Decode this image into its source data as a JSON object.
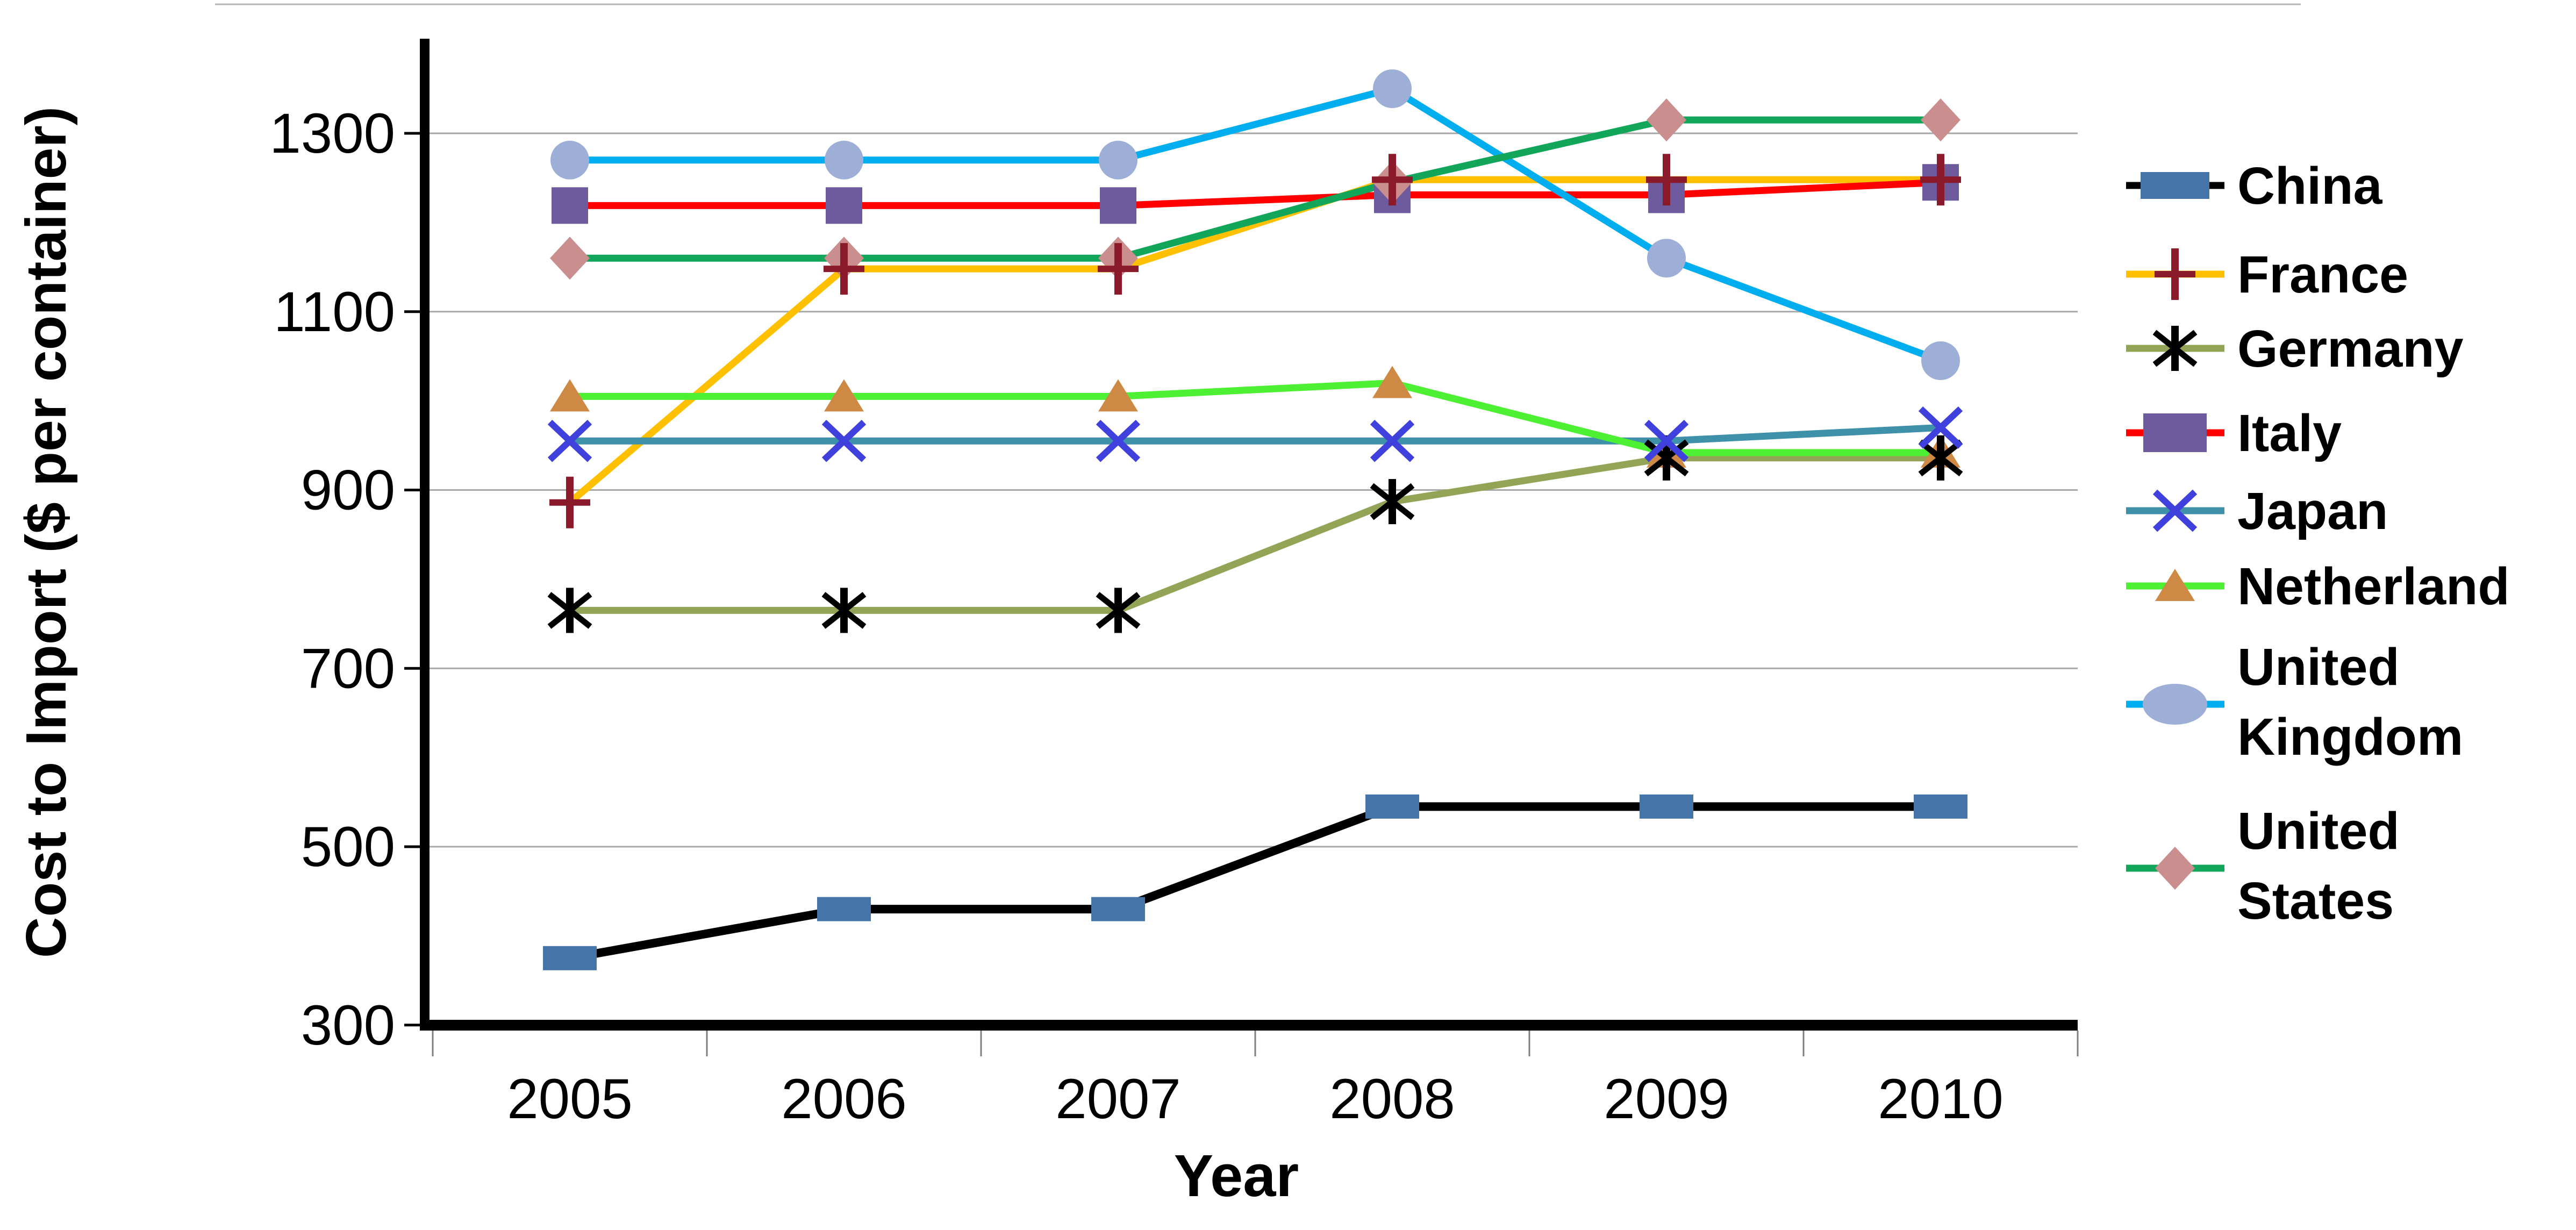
{
  "chart_data": {
    "type": "line",
    "xlabel": "Year",
    "ylabel": "Cost to Import ($ per container)",
    "categories": [
      "2005",
      "2006",
      "2007",
      "2008",
      "2009",
      "2010"
    ],
    "y_ticks": [
      300,
      500,
      700,
      900,
      1100,
      1300
    ],
    "ylim": [
      300,
      1400
    ],
    "grid": true,
    "legend_position": "right",
    "gridline_color": "#a8a8a8",
    "axis_color": "#000000",
    "series": [
      {
        "name": "China",
        "label_lines": [
          "China"
        ],
        "values": [
          375,
          430,
          430,
          545,
          545,
          545
        ],
        "line_color": "#000000",
        "line_width": 16,
        "marker": {
          "type": "rect",
          "fill": "#4574a9"
        }
      },
      {
        "name": "France",
        "label_lines": [
          "France"
        ],
        "values": [
          886,
          1148,
          1148,
          1248,
          1248,
          1248
        ],
        "line_color": "#ffc000",
        "line_width": 13,
        "marker": {
          "type": "plus",
          "fill": "#8b1a2a"
        }
      },
      {
        "name": "Germany",
        "label_lines": [
          "Germany"
        ],
        "values": [
          765,
          765,
          765,
          887,
          936,
          936
        ],
        "line_color": "#94a456",
        "line_width": 13,
        "marker": {
          "type": "asterisk",
          "fill": "#000000"
        }
      },
      {
        "name": "Italy",
        "label_lines": [
          "Italy"
        ],
        "values": [
          1219,
          1219,
          1219,
          1231,
          1231,
          1245
        ],
        "line_color": "#fe0000",
        "line_width": 13,
        "marker": {
          "type": "square",
          "fill": "#6e5b9e"
        }
      },
      {
        "name": "Japan",
        "label_lines": [
          "Japan"
        ],
        "values": [
          955,
          955,
          955,
          955,
          955,
          970
        ],
        "line_color": "#3f90a9",
        "line_width": 13,
        "marker": {
          "type": "xcross",
          "fill": "#4040dc"
        }
      },
      {
        "name": "Netherland",
        "label_lines": [
          "Netherland"
        ],
        "values": [
          1005,
          1005,
          1005,
          1020,
          942,
          942
        ],
        "line_color": "#4df032",
        "line_width": 13,
        "marker": {
          "type": "triangle",
          "fill": "#ce8a45"
        }
      },
      {
        "name": "United Kingdom",
        "label_lines": [
          "United",
          "Kingdom"
        ],
        "values": [
          1270,
          1270,
          1270,
          1350,
          1160,
          1045
        ],
        "line_color": "#00aeef",
        "line_width": 13,
        "marker": {
          "type": "circle",
          "fill": "#9dafd6"
        }
      },
      {
        "name": "United States",
        "label_lines": [
          "United",
          "States"
        ],
        "values": [
          1160,
          1160,
          1160,
          1245,
          1315,
          1315
        ],
        "line_color": "#12a65a",
        "line_width": 13,
        "marker": {
          "type": "diamond",
          "fill": "#cb8e8e"
        }
      }
    ],
    "marker_draw_order": [
      "Netherland",
      "Germany",
      "Japan",
      "Italy",
      "United States",
      "France",
      "United Kingdom",
      "China"
    ]
  }
}
